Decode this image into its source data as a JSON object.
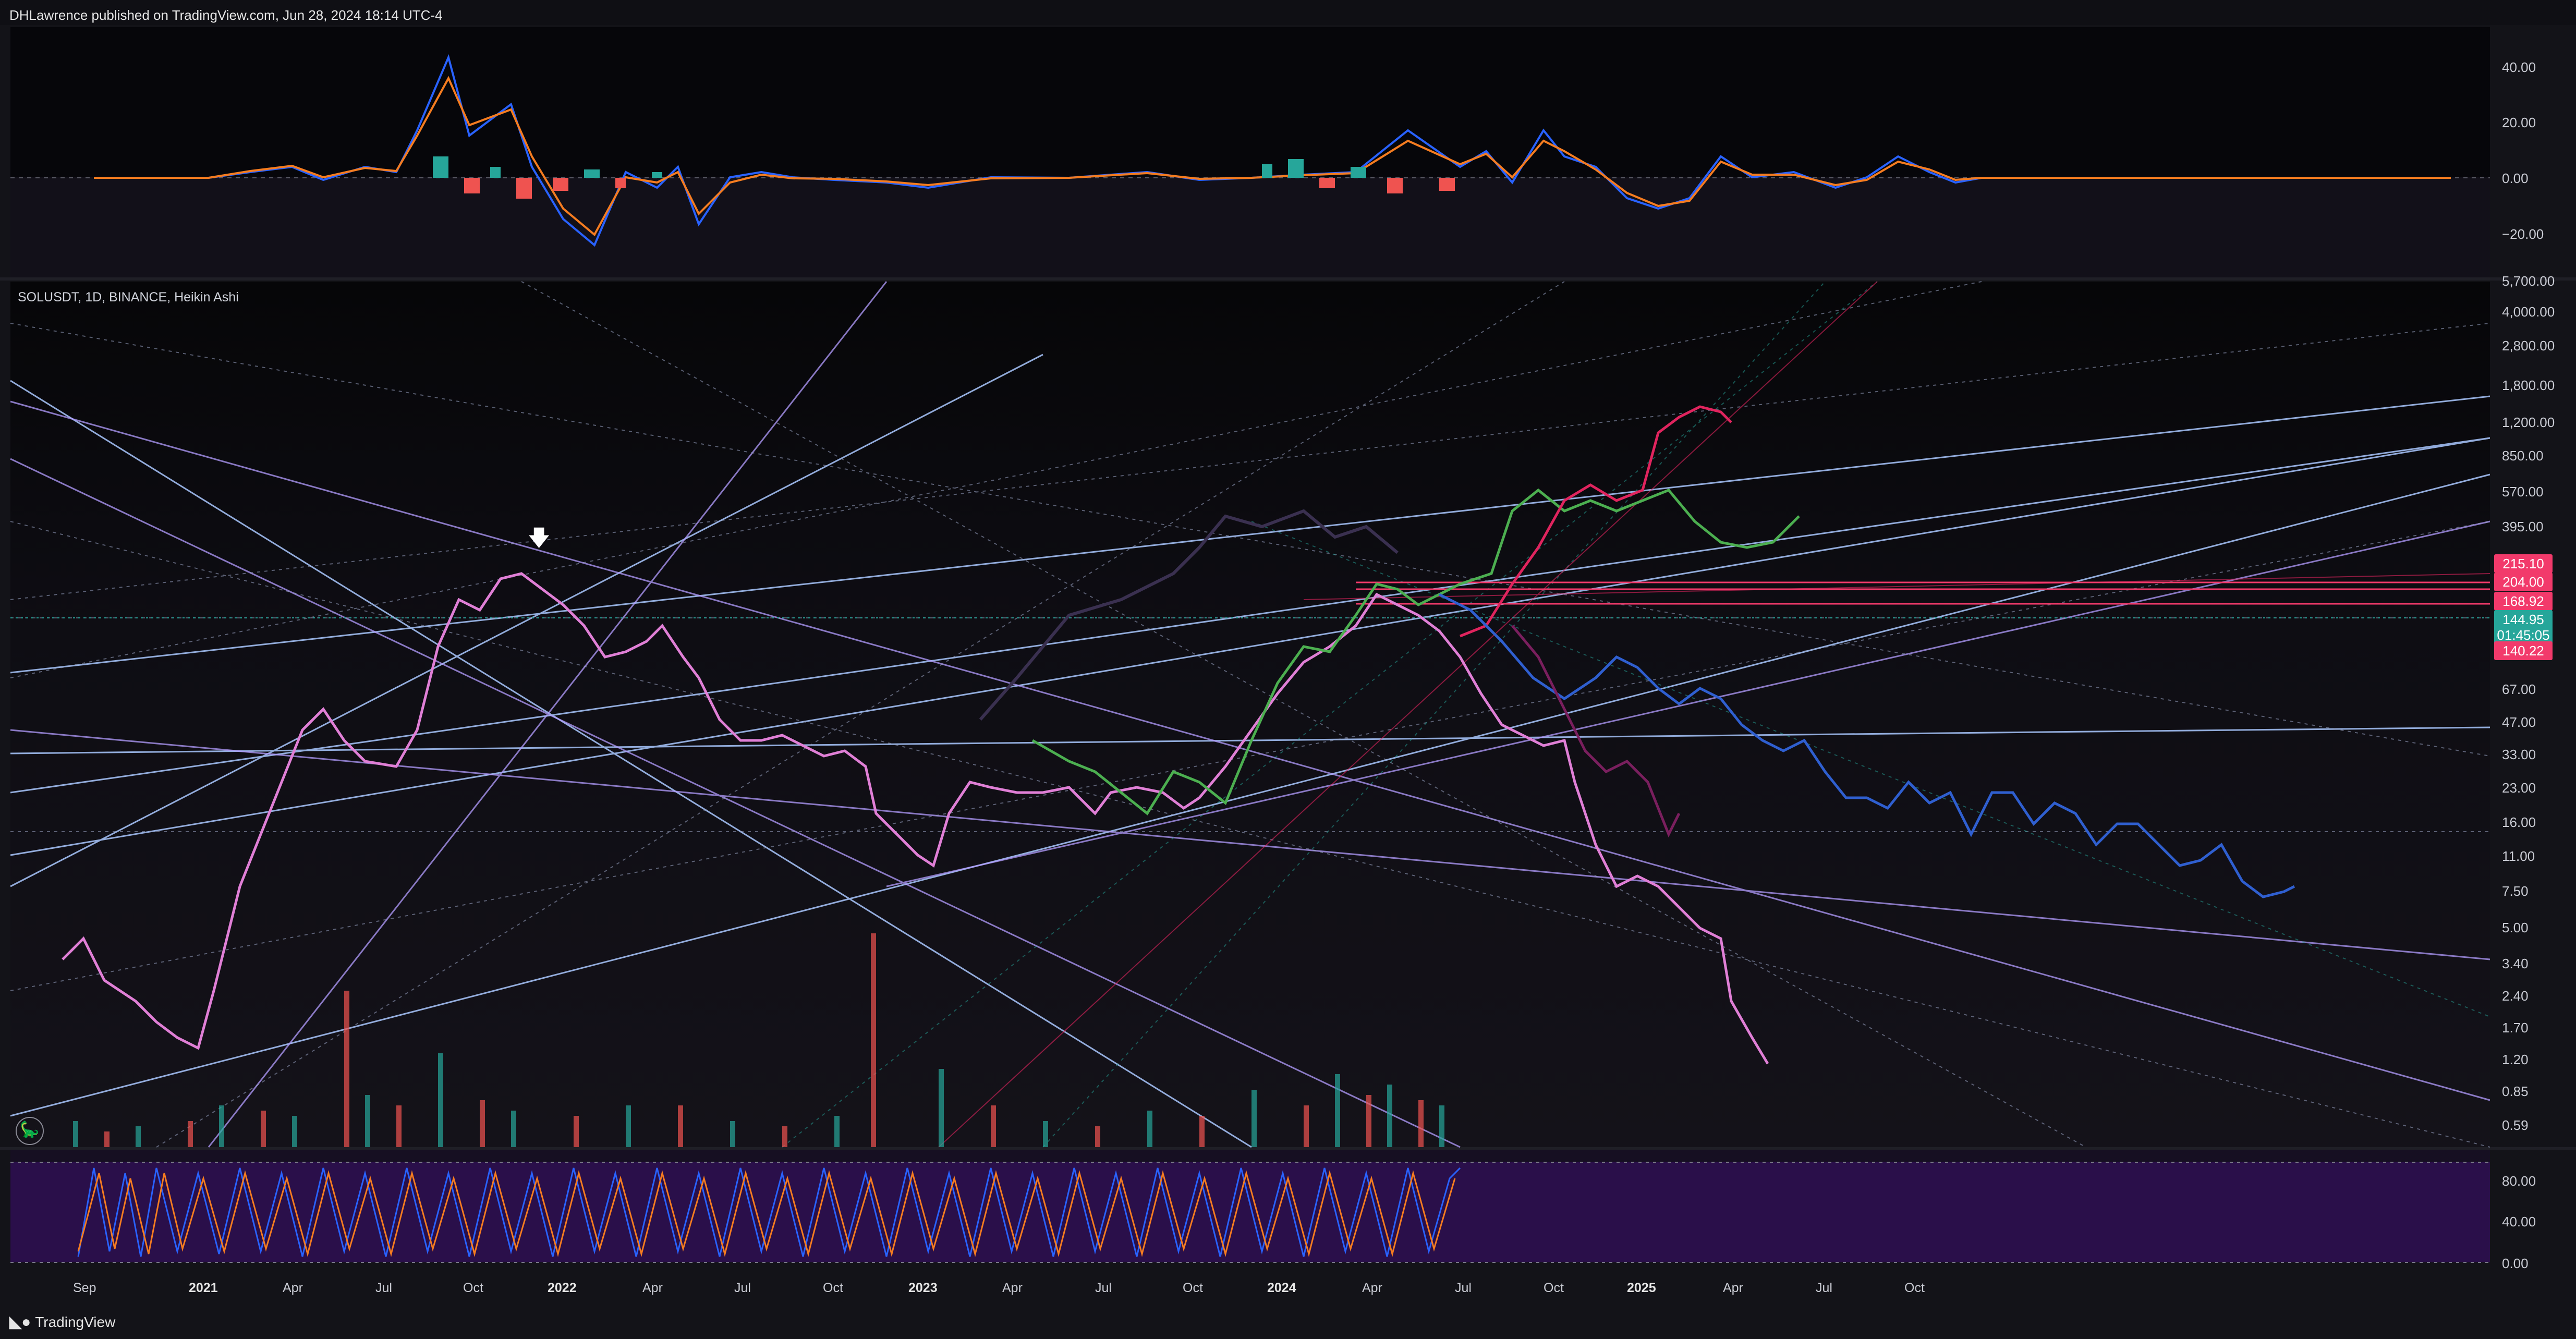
{
  "header": {
    "published": "DHLawrence published on TradingView.com, Jun 28, 2024 18:14 UTC-4"
  },
  "main": {
    "symbol": "SOLUSDT, 1D, BINANCE, Heikin Ashi"
  },
  "macd_axis": [
    "40.00",
    "20.00",
    "0.00",
    "−20.00"
  ],
  "price_axis": [
    "5,700.00",
    "4,000.00",
    "2,800.00",
    "1,800.00",
    "1,200.00",
    "850.00",
    "570.00",
    "395.00",
    "67.00",
    "47.00",
    "33.00",
    "23.00",
    "16.00",
    "11.00",
    "7.50",
    "5.00",
    "3.40",
    "2.40",
    "1.70",
    "1.20",
    "0.85",
    "0.59"
  ],
  "badges": {
    "b1": "215.10",
    "b2": "204.00",
    "b3": "168.92",
    "b4": "144.95",
    "b5": "01:45:05",
    "b6": "140.22"
  },
  "colors": {
    "badge_red": "#f23a6b",
    "badge_green": "#26a69a",
    "stoch_fill": "#2a0f4a"
  },
  "stoch_axis": [
    "80.00",
    "40.00",
    "0.00"
  ],
  "time_axis": [
    "Sep",
    "2021",
    "Apr",
    "Jul",
    "Oct",
    "2022",
    "Apr",
    "Jul",
    "Oct",
    "2023",
    "Apr",
    "Jul",
    "Oct",
    "2024",
    "Apr",
    "Jul",
    "Oct",
    "2025",
    "Apr",
    "Jul",
    "Oct"
  ],
  "footer": {
    "brand": "TradingView",
    "brand_icon": "tradingview-logo-icon"
  },
  "icons": {
    "corner": "dino-icon",
    "marker": "arrow-down-icon"
  }
}
